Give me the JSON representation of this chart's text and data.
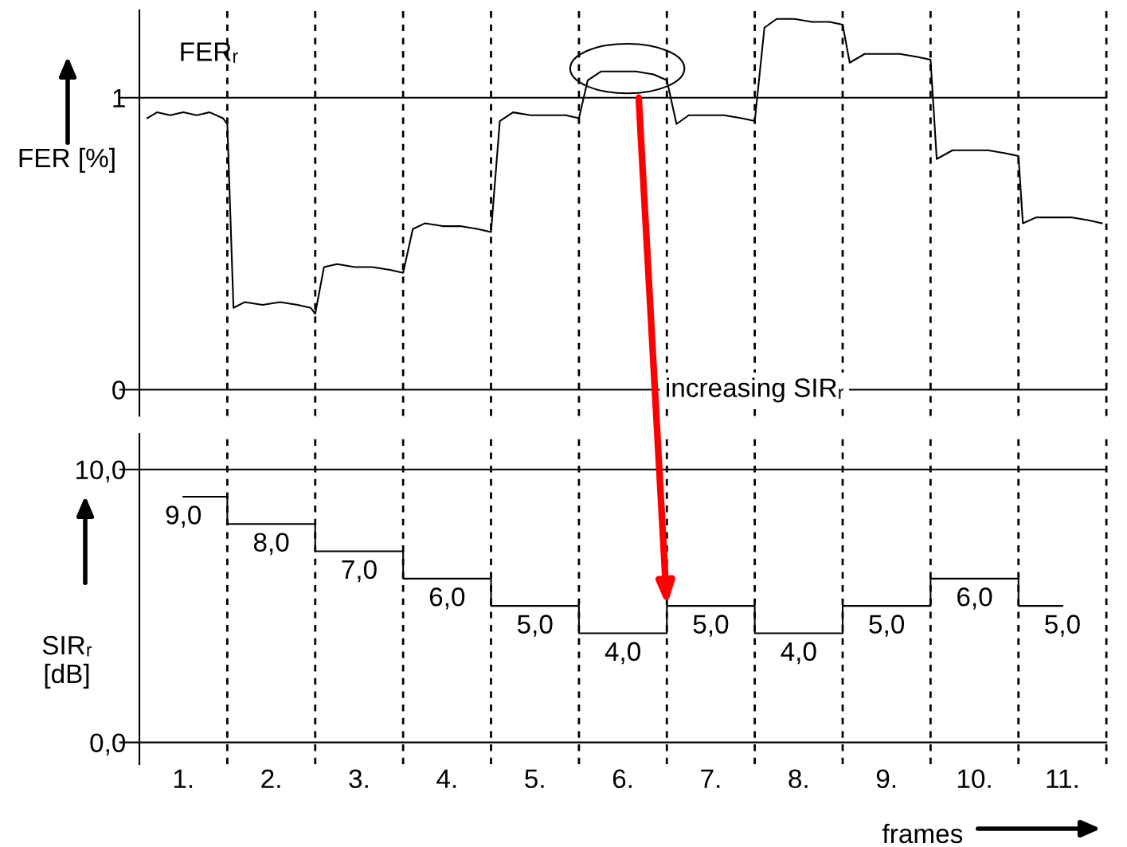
{
  "chart_data": [
    {
      "type": "line",
      "ylabel": "FER [%]",
      "color": "#000000",
      "x": [
        0.09,
        0.2,
        0.35,
        0.5,
        0.65,
        0.8,
        0.95,
        1.0,
        1.07,
        1.2,
        1.4,
        1.6,
        1.8,
        1.95,
        2.0,
        2.1,
        2.25,
        2.45,
        2.65,
        2.85,
        3.0,
        3.11,
        3.25,
        3.45,
        3.65,
        3.85,
        4.0,
        4.1,
        4.25,
        4.45,
        4.65,
        4.85,
        5.0,
        5.1,
        5.25,
        5.45,
        5.65,
        5.85,
        6.0,
        6.11,
        6.25,
        6.45,
        6.65,
        6.85,
        7.0,
        7.11,
        7.25,
        7.45,
        7.65,
        7.85,
        8.0,
        8.08,
        8.25,
        8.45,
        8.65,
        8.85,
        9.0,
        9.07,
        9.25,
        9.45,
        9.65,
        9.85,
        10.0,
        10.05,
        10.2,
        10.4,
        10.6,
        10.8,
        10.95
      ],
      "values": [
        0.93,
        0.95,
        0.94,
        0.95,
        0.94,
        0.95,
        0.93,
        0.91,
        0.28,
        0.3,
        0.29,
        0.3,
        0.29,
        0.28,
        0.26,
        0.42,
        0.43,
        0.42,
        0.42,
        0.41,
        0.4,
        0.55,
        0.57,
        0.56,
        0.56,
        0.55,
        0.54,
        0.92,
        0.95,
        0.94,
        0.94,
        0.94,
        0.93,
        1.06,
        1.09,
        1.09,
        1.09,
        1.08,
        1.06,
        0.91,
        0.94,
        0.94,
        0.94,
        0.93,
        0.92,
        1.24,
        1.27,
        1.27,
        1.26,
        1.26,
        1.25,
        1.12,
        1.15,
        1.15,
        1.15,
        1.14,
        1.13,
        0.79,
        0.82,
        0.82,
        0.82,
        0.81,
        0.8,
        0.57,
        0.59,
        0.59,
        0.59,
        0.58,
        0.57
      ],
      "xlim": [
        0,
        11
      ],
      "ylim": [
        -0.09,
        1.3
      ],
      "yticks": [
        0,
        1
      ],
      "tick_labels": "y",
      "ref_lines": [
        {
          "axis": "y",
          "value": 1,
          "line_style": "solid"
        },
        {
          "axis": "y",
          "value": 0,
          "line_style": "solid"
        },
        {
          "axis": "x",
          "value": 1,
          "line_style": "dashed"
        },
        {
          "axis": "x",
          "value": 2,
          "line_style": "dashed"
        },
        {
          "axis": "x",
          "value": 3,
          "line_style": "dashed"
        },
        {
          "axis": "x",
          "value": 4,
          "line_style": "dashed"
        },
        {
          "axis": "x",
          "value": 5,
          "line_style": "dashed"
        },
        {
          "axis": "x",
          "value": 6,
          "line_style": "dashed"
        },
        {
          "axis": "x",
          "value": 7,
          "line_style": "dashed"
        },
        {
          "axis": "x",
          "value": 8,
          "line_style": "dashed"
        },
        {
          "axis": "x",
          "value": 9,
          "line_style": "dashed"
        },
        {
          "axis": "x",
          "value": 10,
          "line_style": "dashed"
        },
        {
          "axis": "x",
          "value": 11,
          "line_style": "dashed"
        }
      ],
      "annotations": [
        "FERᵣ"
      ]
    },
    {
      "type": "step",
      "ylabel": "SIRᵣ\n[dB]",
      "xlabel": "frames",
      "color": "#000000",
      "x": [
        0.5,
        1.5,
        2.5,
        3.5,
        4.5,
        5.5,
        6.5,
        7.5,
        8.5,
        9.5,
        10.5
      ],
      "values": [
        9,
        8,
        7,
        6,
        5,
        4,
        5,
        4,
        5,
        6,
        5
      ],
      "value_labels": [
        "9,0",
        "8,0",
        "7,0",
        "6,0",
        "5,0",
        "4,0",
        "5,0",
        "4,0",
        "5,0",
        "6,0",
        "5,0"
      ],
      "xlim": [
        0,
        11
      ],
      "ylim": [
        -0.8,
        11.3
      ],
      "xticks": [
        {
          "value": 0.5,
          "label": "1."
        },
        {
          "value": 1.5,
          "label": "2."
        },
        {
          "value": 2.5,
          "label": "3."
        },
        {
          "value": 3.5,
          "label": "4."
        },
        {
          "value": 4.5,
          "label": "5."
        },
        {
          "value": 5.5,
          "label": "6."
        },
        {
          "value": 6.5,
          "label": "7."
        },
        {
          "value": 7.5,
          "label": "8."
        },
        {
          "value": 8.5,
          "label": "9."
        },
        {
          "value": 9.5,
          "label": "10."
        },
        {
          "value": 10.5,
          "label": "11."
        }
      ],
      "yticks": [
        {
          "value": 0,
          "label": "0,0"
        },
        {
          "value": 10,
          "label": "10,0"
        }
      ],
      "ref_lines": [
        {
          "axis": "y",
          "value": 10,
          "line_style": "solid"
        },
        {
          "axis": "y",
          "value": 0,
          "line_style": "solid"
        },
        {
          "axis": "x",
          "value": 1,
          "line_style": "dashed"
        },
        {
          "axis": "x",
          "value": 2,
          "line_style": "dashed"
        },
        {
          "axis": "x",
          "value": 3,
          "line_style": "dashed"
        },
        {
          "axis": "x",
          "value": 4,
          "line_style": "dashed"
        },
        {
          "axis": "x",
          "value": 5,
          "line_style": "dashed"
        },
        {
          "axis": "x",
          "value": 6,
          "line_style": "dashed"
        },
        {
          "axis": "x",
          "value": 7,
          "line_style": "dashed"
        },
        {
          "axis": "x",
          "value": 8,
          "line_style": "dashed"
        },
        {
          "axis": "x",
          "value": 9,
          "line_style": "dashed"
        },
        {
          "axis": "x",
          "value": 10,
          "line_style": "dashed"
        },
        {
          "axis": "x",
          "value": 11,
          "line_style": "dashed"
        }
      ],
      "annotations": [
        "increasing SIRᵣ"
      ]
    }
  ]
}
